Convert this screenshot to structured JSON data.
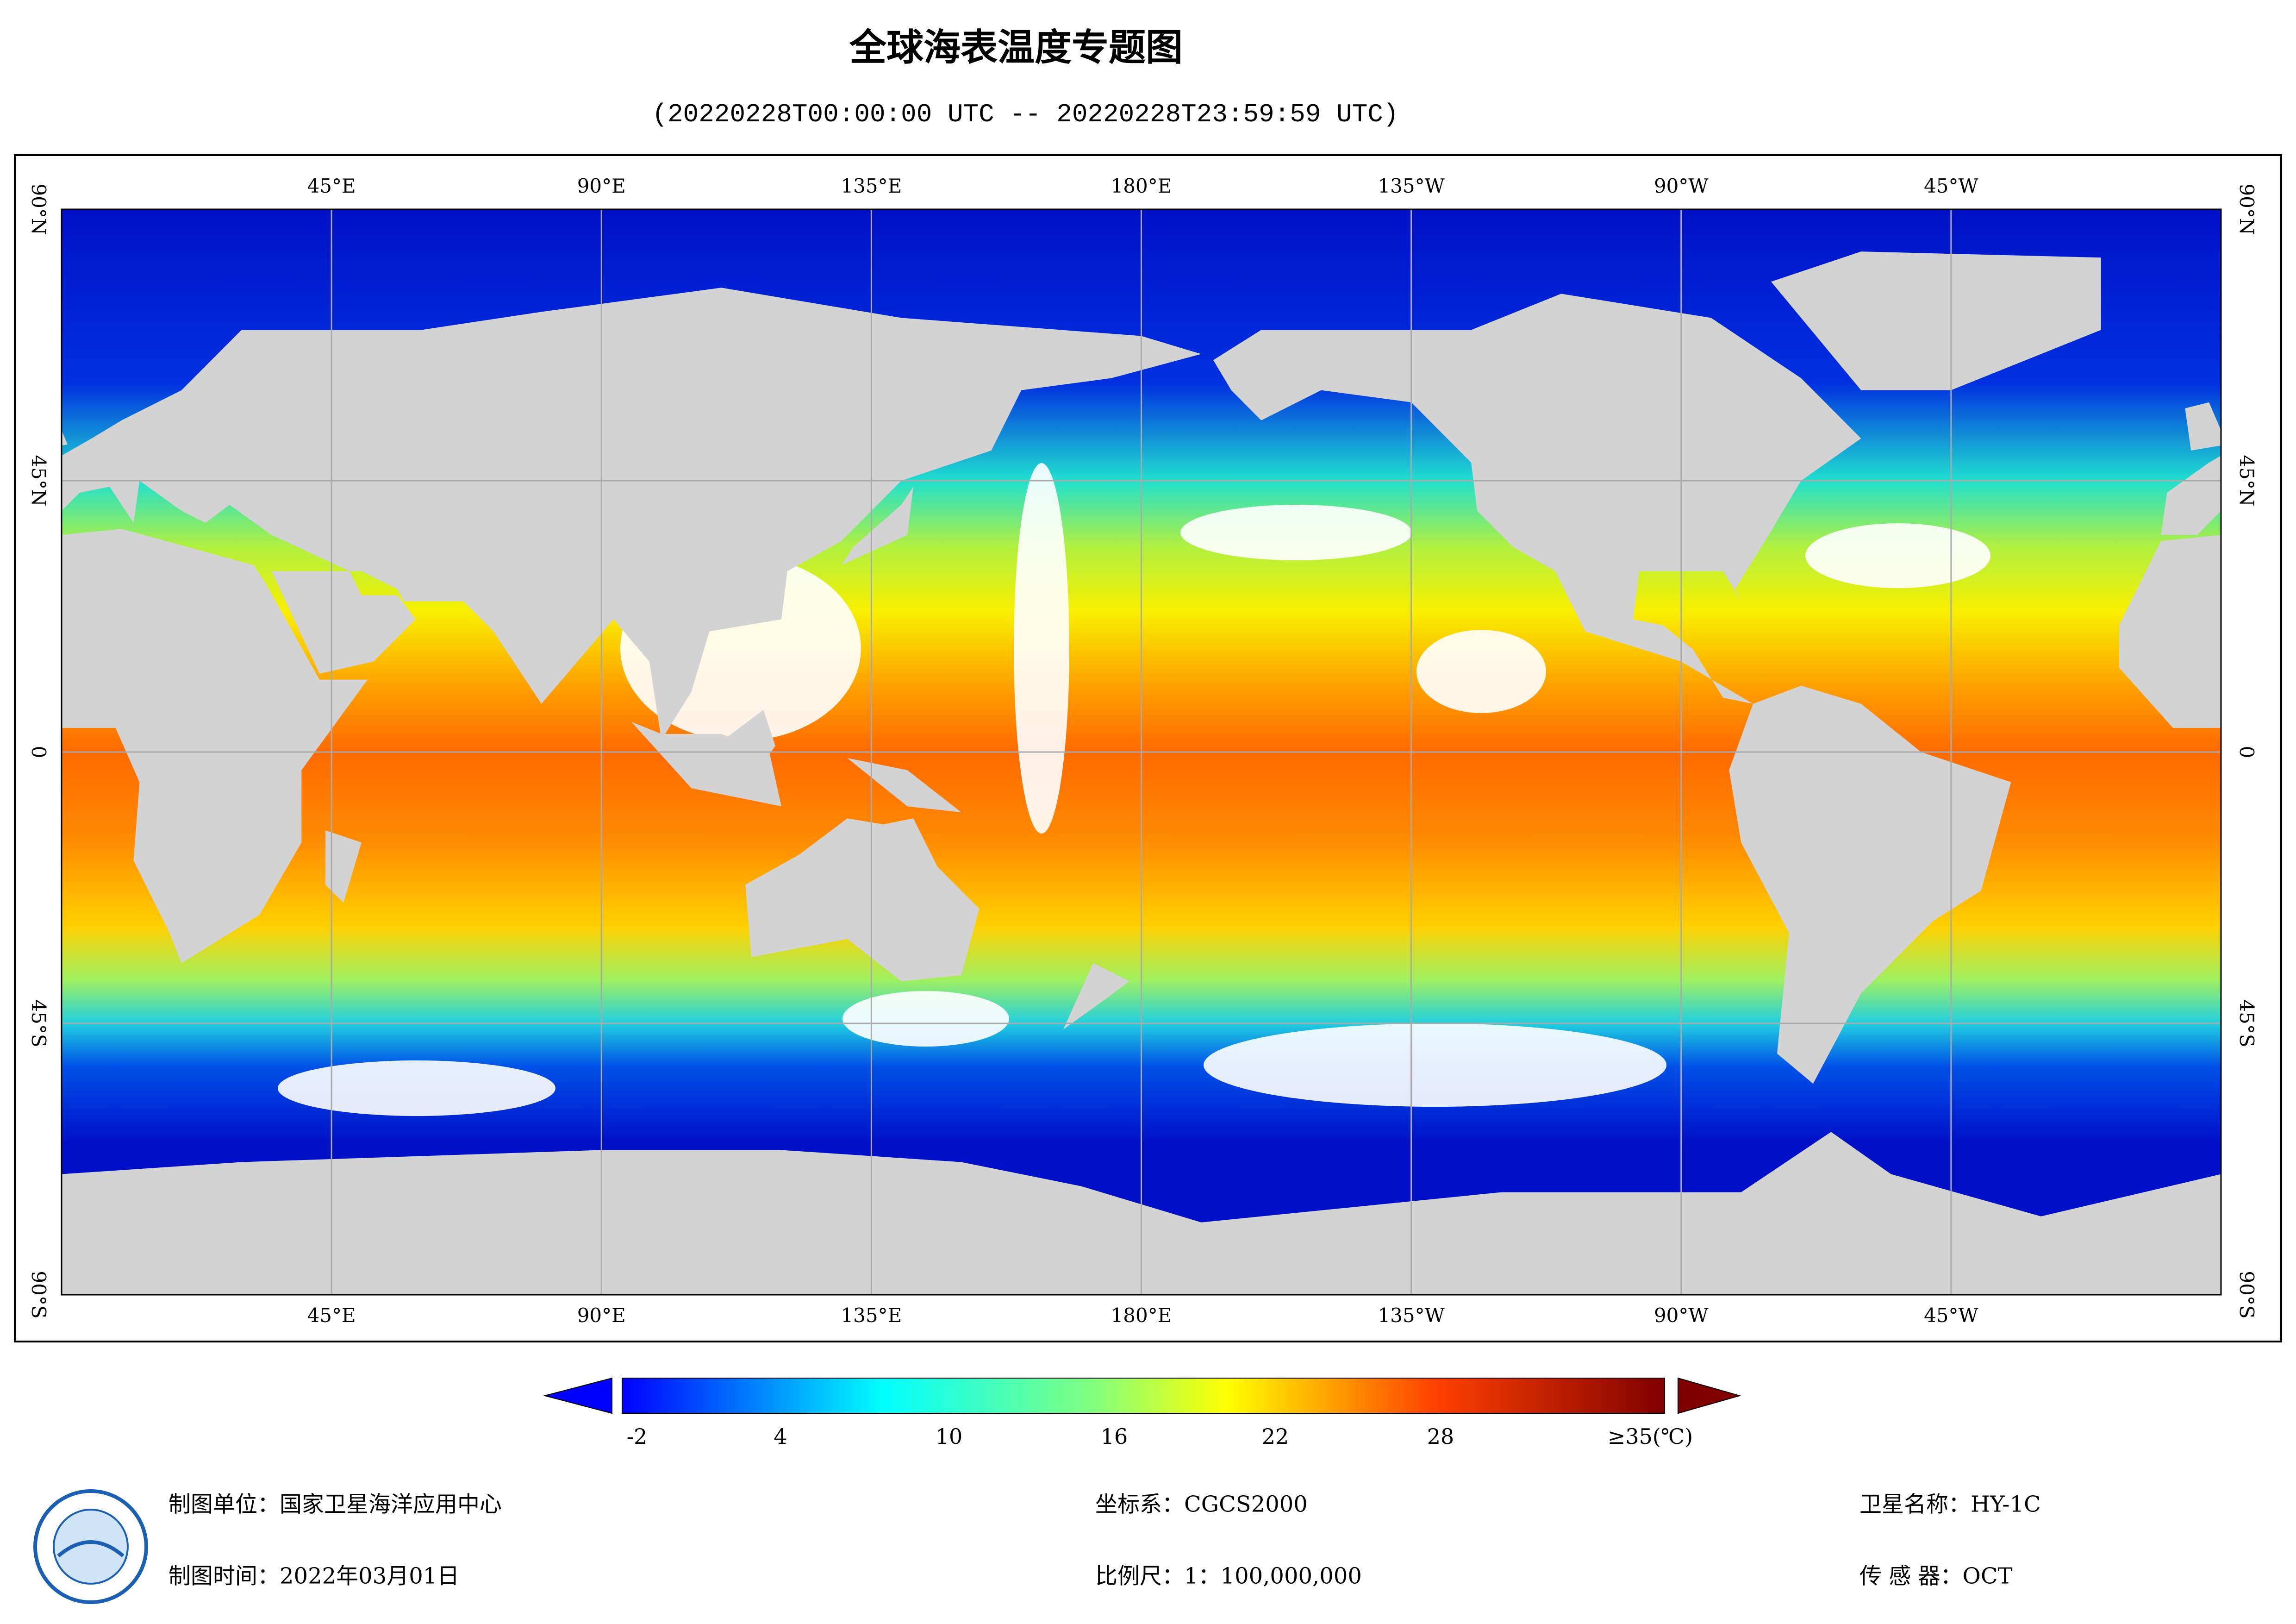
{
  "header": {
    "title": "全球海表温度专题图",
    "subtitle": "(20220228T00:00:00 UTC -- 20220228T23:59:59 UTC)"
  },
  "map": {
    "lon_labels": [
      "45°E",
      "90°E",
      "135°E",
      "180°E",
      "135°W",
      "90°W",
      "45°W"
    ],
    "lat_labels": [
      "90°N",
      "45°N",
      "0",
      "45°S",
      "90°S"
    ]
  },
  "colorbar": {
    "labels": [
      "-2",
      "4",
      "10",
      "16",
      "22",
      "28",
      "≥35(℃)"
    ]
  },
  "footer": {
    "left": [
      "制图单位：国家卫星海洋应用中心",
      "制图时间：2022年03月01日"
    ],
    "center": [
      "坐标系：CGCS2000",
      "比例尺：1：100,000,000"
    ],
    "right": [
      "卫星名称：HY-1C",
      "传 感 器：OCT"
    ]
  }
}
